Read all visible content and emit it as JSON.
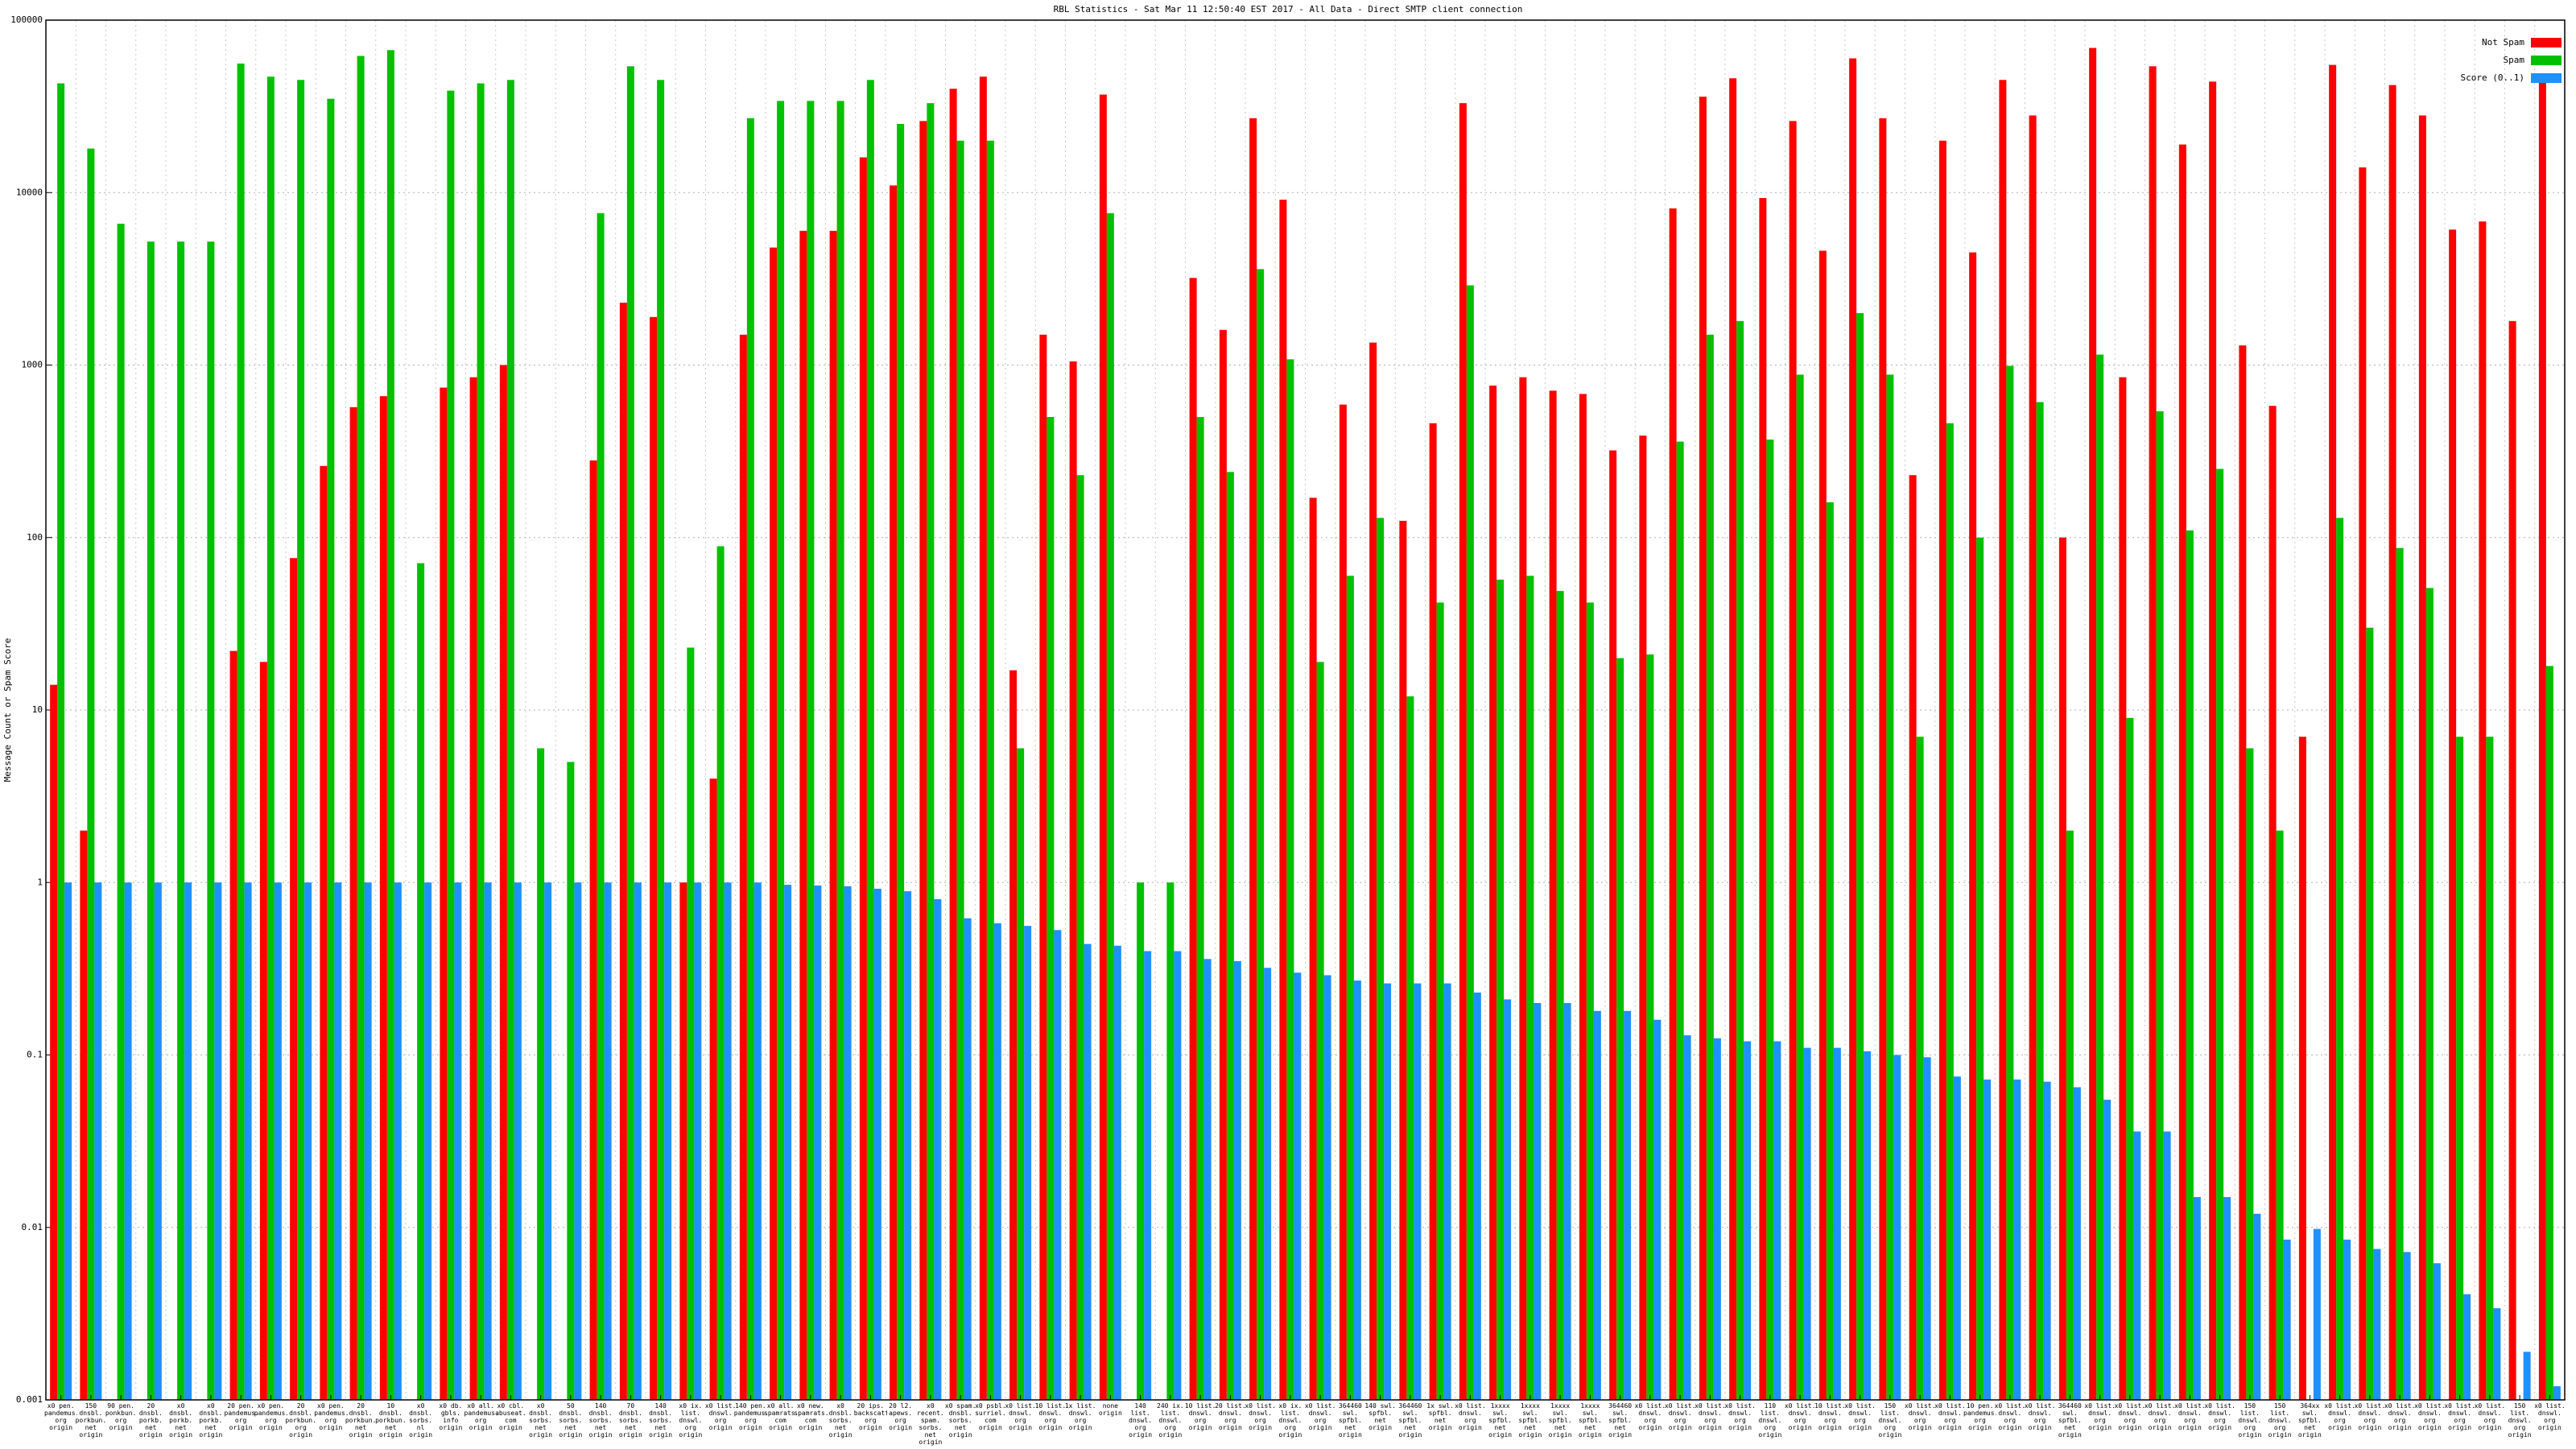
{
  "chart_data": {
    "type": "bar",
    "title": "RBL Statistics - Sat Mar 11 12:50:40 EST 2017 - All Data - Direct SMTP client connection",
    "y_label": "Message Count or Spam Score",
    "log_scale": true,
    "grid": true,
    "legend_position": "top-right",
    "ylim": [
      0.001,
      100000
    ],
    "yticks": [
      0.001,
      0.01,
      0.1,
      1,
      10,
      100,
      1000,
      10000,
      100000
    ],
    "categories": [
      "x0 pen. pandemus. org origin",
      "150 dnsbl. porkbun. net origin",
      "90 pen. ponkbun. org origin",
      "20 dnsbl. porkb. net origin",
      "x0 dnsbl. porkb. net origin",
      "x0 dnsbl. porkb. net origin",
      "20 pen. pandemus. org origin",
      "x0 pen. pandemus. org origin",
      "20 dnsbl. porkbun. org origin",
      "x0 pen. pandemus. org origin",
      "20 dnsbl. porkbun. net origin",
      "10 dnsbl. porkbun. net origin",
      "x0 dnsbl. sorbs. nl origin",
      "x0 db. gbls. info origin",
      "x0 all. pandemus. org origin",
      "x0 cbl. abuseat. com origin",
      "x0 dnsbl. sorbs. net origin",
      "50 dnsbl. sorbs. net origin",
      "140 dnsbl. sorbs. net origin",
      "70 dnsbl. sorbs. net origin",
      "140 dnsbl. sorbs. net origin",
      "x0 ix. list. dnswl. org origin",
      "x0 list. dnswl. org origin",
      "140 pen. pandemus. org origin",
      "x0 all. spamrats. com origin",
      "x0 new. spamrats. com origin",
      "x0 dnsbl. sorbs. net origin",
      "20 ips. backscatterer. org origin",
      "20 l2. apews. org origin",
      "x0 recent. spam. sorbs. net origin",
      "x0 spam. dnsbl. sorbs. net origin",
      "x0 psbl. surriel. com origin",
      "x0 list. dnswl. org origin",
      "10 list. dnswl. org origin",
      "1x list. dnswl. org origin",
      "none origin",
      "140 list. dnswl. org origin",
      "240 ix. list. dnswl. org origin",
      "10 list. dnswl. org origin",
      "20 list. dnswl. org origin",
      "x0 list. dnswl. org origin",
      "x0 ix. list. dnswl. org origin",
      "x0 list. dnswl. org origin",
      "364460 swl. spfbl. net origin",
      "140 swl. spfbl. net origin",
      "364460 swl. spfbl. net origin",
      "1x swl. spfbl. net origin",
      "x0 list. dnswl. org origin",
      "1xxxx swl. spfbl. net origin",
      "1xxxx swl. spfbl. net origin",
      "1xxxx swl. spfbl. net origin",
      "1xxxx swl. spfbl. net origin",
      "364460 swl. spfbl. net origin",
      "x0 list. dnswl. org origin",
      "x0 list. dnswl. org origin",
      "x0 list. dnswl. org origin",
      "x0 list. dnswl. org origin",
      "110 list. dnswl. org origin",
      "x0 list. dnswl. org origin",
      "10 list. dnswl. org origin",
      "x0 list. dnswl. org origin",
      "150 list. dnswl. org origin",
      "x0 list. dnswl. org origin",
      "x0 list. dnswl. org origin",
      "10 pen. pandemus. org origin",
      "x0 list. dnswl. org origin",
      "x0 list. dnswl. org origin",
      "364460 swl. spfbl. net origin",
      "x0 list. dnswl. org origin",
      "x0 list. dnswl. org origin",
      "x0 list. dnswl. org origin",
      "x0 list. dnswl. org origin",
      "x0 list. dnswl. org origin",
      "150 list. dnswl. org origin",
      "150 list. dnswl. org origin",
      "364xx swl. spfbl. net origin",
      "x0 list. dnswl. org origin",
      "x0 list. dnswl. org origin",
      "x0 list. dnswl. org origin",
      "x0 list. dnswl. org origin",
      "x0 list. dnswl. org origin",
      "x0 list. dnswl. org origin",
      "150 list. dnswl. org origin",
      "x0 list. dnswl. org origin"
    ],
    "series": [
      {
        "name": "Not Spam",
        "color": "#ff0000",
        "values": [
          14,
          2,
          null,
          null,
          null,
          null,
          22,
          19,
          76,
          260,
          570,
          660,
          null,
          740,
          850,
          1000,
          null,
          null,
          280,
          2300,
          1900,
          1,
          4,
          1500,
          4800,
          6000,
          6000,
          16000,
          11000,
          26000,
          40000,
          47000,
          17,
          1500,
          1050,
          37000,
          null,
          null,
          3200,
          1600,
          27000,
          9100,
          170,
          590,
          1350,
          125,
          460,
          33000,
          760,
          850,
          710,
          680,
          320,
          390,
          8100,
          36000,
          46000,
          9300,
          26000,
          4600,
          60000,
          27000,
          230,
          20000,
          4500,
          45000,
          28000,
          100,
          69000,
          850,
          54000,
          19000,
          44000,
          1300,
          580,
          7,
          55000,
          14000,
          42000,
          28000,
          6100,
          6800,
          1800,
          45000
        ]
      },
      {
        "name": "Spam",
        "color": "#00c000",
        "values": [
          43000,
          18000,
          6600,
          5200,
          5200,
          5200,
          56000,
          47000,
          45000,
          35000,
          62000,
          67000,
          71,
          39000,
          43000,
          45000,
          6,
          5,
          7600,
          54000,
          45000,
          23,
          89,
          27000,
          34000,
          34000,
          34000,
          45000,
          25000,
          33000,
          20000,
          20000,
          6,
          500,
          230,
          7600,
          1,
          1,
          500,
          240,
          3600,
          1080,
          19,
          60,
          130,
          12,
          42,
          2900,
          57,
          60,
          49,
          42,
          20,
          21,
          360,
          1500,
          1800,
          370,
          880,
          160,
          2000,
          880,
          7,
          460,
          100,
          990,
          610,
          2,
          1150,
          9,
          540,
          110,
          250,
          6,
          2,
          null,
          130,
          30,
          87,
          51,
          7,
          7,
          null,
          18
        ]
      },
      {
        "name": "Score (0..1)",
        "color": "#1e90ff",
        "values": [
          1,
          1,
          1,
          1,
          1,
          1,
          1,
          1,
          1,
          1,
          1,
          1,
          1,
          1,
          1,
          1,
          1,
          1,
          1,
          1,
          1,
          1,
          1,
          1,
          0.97,
          0.96,
          0.95,
          0.92,
          0.89,
          0.8,
          0.62,
          0.58,
          0.56,
          0.53,
          0.44,
          0.43,
          0.4,
          0.4,
          0.36,
          0.35,
          0.32,
          0.3,
          0.29,
          0.27,
          0.26,
          0.26,
          0.26,
          0.23,
          0.21,
          0.2,
          0.2,
          0.18,
          0.18,
          0.16,
          0.13,
          0.125,
          0.12,
          0.12,
          0.11,
          0.11,
          0.105,
          0.1,
          0.097,
          0.075,
          0.072,
          0.072,
          0.07,
          0.065,
          0.055,
          0.036,
          0.036,
          0.015,
          0.015,
          0.012,
          0.0085,
          0.0098,
          0.0085,
          0.0075,
          0.0072,
          0.0062,
          0.0041,
          0.0034,
          0.0019,
          0.0012
        ]
      }
    ]
  }
}
